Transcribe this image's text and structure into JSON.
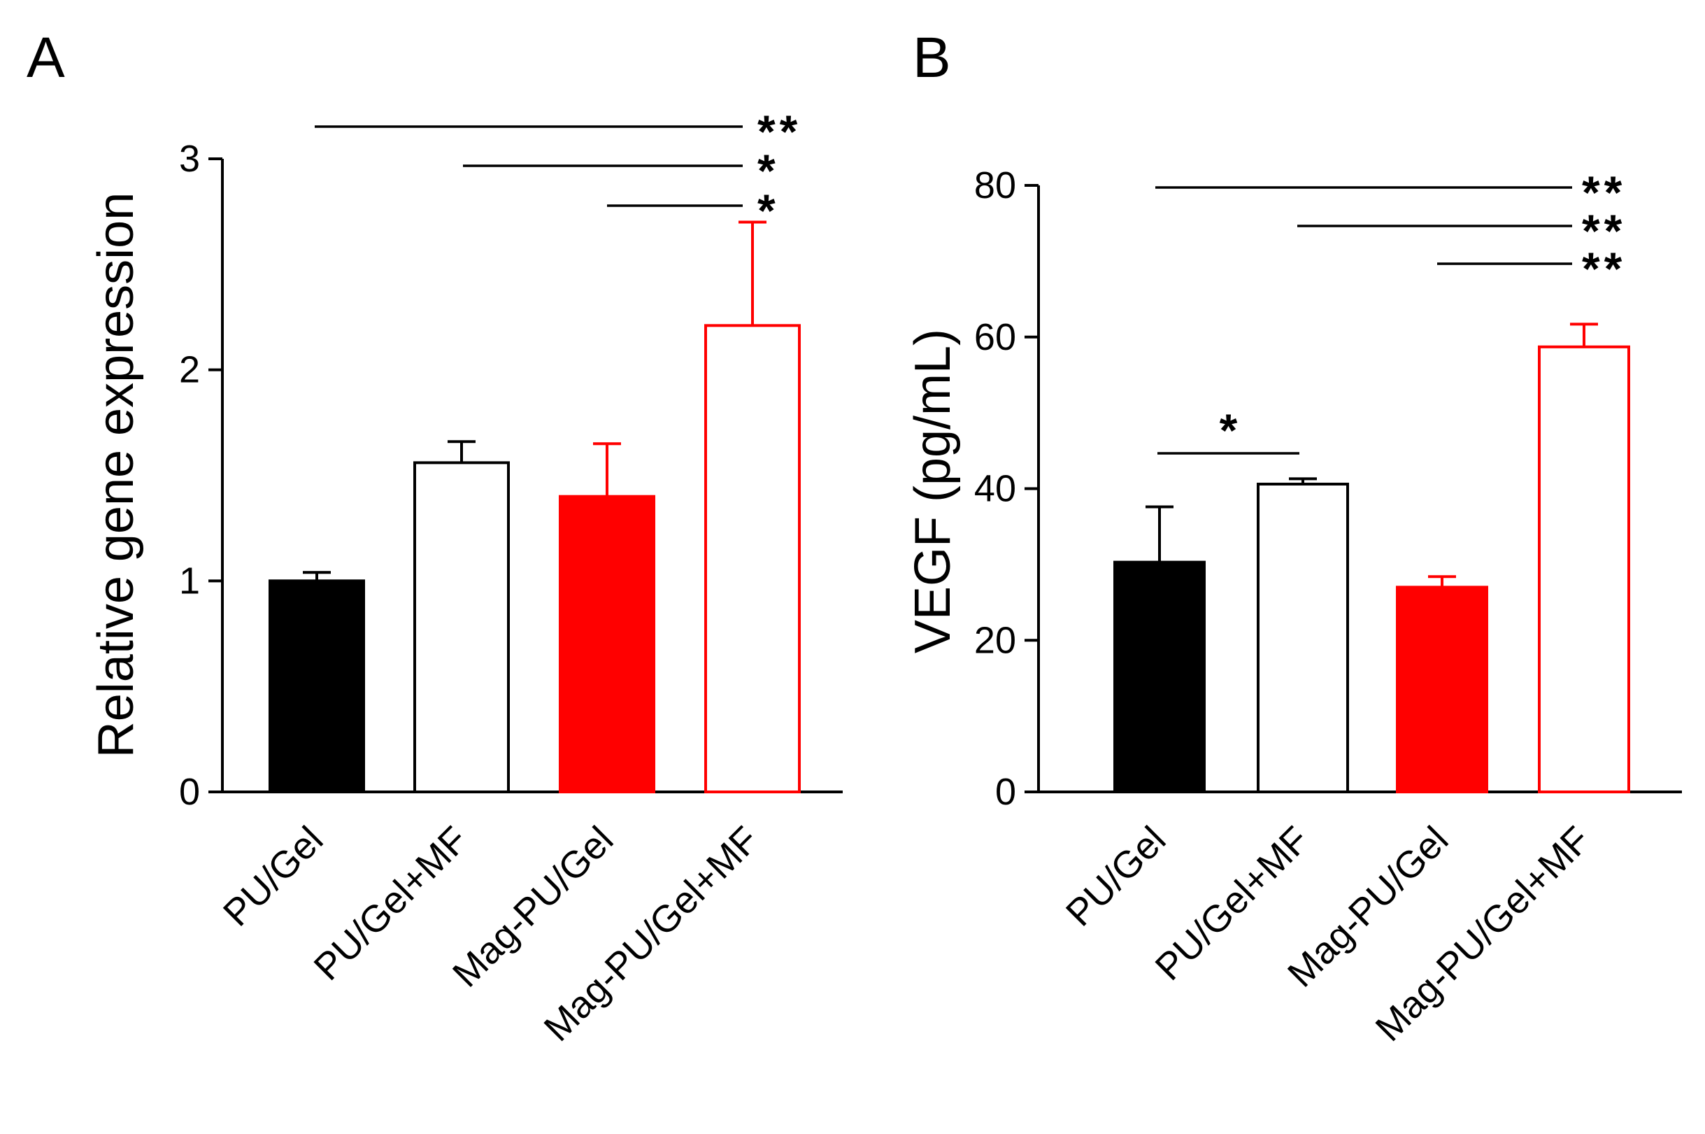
{
  "chart_data": [
    {
      "panel_label": "A",
      "type": "bar",
      "title": "",
      "xlabel": "",
      "ylabel": "Relative gene expression",
      "ylim": [
        0,
        3
      ],
      "yticks": [
        0,
        1,
        2,
        3
      ],
      "ytick_labels": [
        "0",
        "1",
        "2",
        "3"
      ],
      "categories": [
        "PU/Gel",
        "PU/Gel+MF",
        "Mag-PU/Gel",
        "Mag-PU/Gel+MF"
      ],
      "values": [
        1.0,
        1.56,
        1.4,
        2.21
      ],
      "errors": [
        0.04,
        0.1,
        0.25,
        0.49
      ],
      "styles": [
        "black-filled",
        "black-outline",
        "red-filled",
        "red-outline"
      ],
      "significance": [
        {
          "from": 0,
          "to": 3,
          "label": "**"
        },
        {
          "from": 1,
          "to": 3,
          "label": "*"
        },
        {
          "from": 2,
          "to": 3,
          "label": "*"
        }
      ]
    },
    {
      "panel_label": "B",
      "type": "bar",
      "title": "",
      "xlabel": "",
      "ylabel": "VEGF (pg/mL)",
      "ylim": [
        0,
        80
      ],
      "yticks": [
        0,
        20,
        40,
        60,
        80
      ],
      "ytick_labels": [
        "0",
        "20",
        "40",
        "60",
        "80"
      ],
      "categories": [
        "PU/Gel",
        "PU/Gel+MF",
        "Mag-PU/Gel",
        "Mag-PU/Gel+MF"
      ],
      "values": [
        30.3,
        40.6,
        27.0,
        58.7
      ],
      "errors": [
        7.3,
        0.7,
        1.4,
        3.0
      ],
      "styles": [
        "black-filled",
        "black-outline",
        "red-filled",
        "red-outline"
      ],
      "significance": [
        {
          "from": 0,
          "to": 3,
          "label": "**"
        },
        {
          "from": 1,
          "to": 3,
          "label": "**"
        },
        {
          "from": 2,
          "to": 3,
          "label": "**"
        },
        {
          "from": 0,
          "to": 1,
          "label": "*"
        }
      ]
    }
  ],
  "colors": {
    "black": "#000000",
    "red": "#ff0000",
    "white": "#ffffff"
  }
}
